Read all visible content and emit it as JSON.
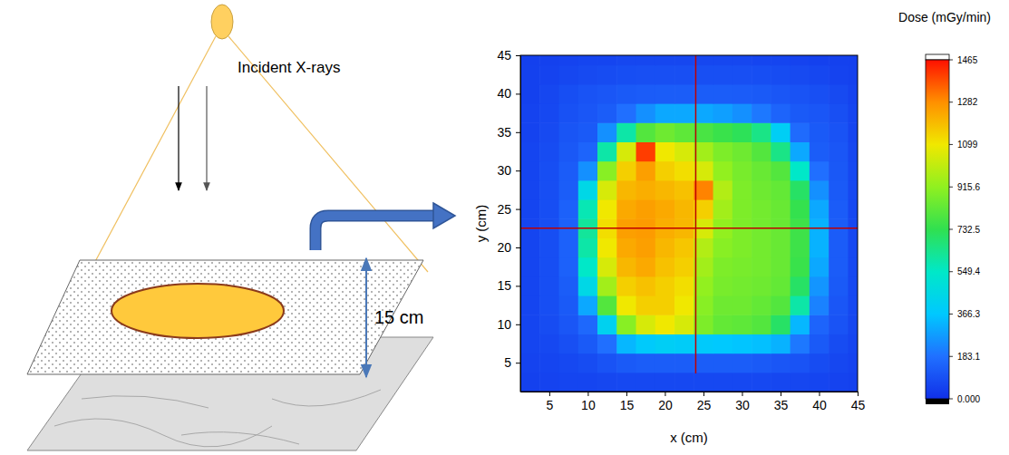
{
  "chart_data": {
    "type": "heatmap",
    "x_label": "x (cm)",
    "y_label": "y (cm)",
    "xlim": [
      1.25,
      45
    ],
    "ylim": [
      1.25,
      45
    ],
    "xticks": [
      5,
      10,
      15,
      20,
      25,
      30,
      35,
      40,
      45
    ],
    "yticks": [
      5,
      10,
      15,
      20,
      25,
      30,
      35,
      40,
      45
    ],
    "x": [
      2.5,
      5,
      7.5,
      10,
      12.5,
      15,
      17.5,
      20,
      22.5,
      25,
      27.5,
      30,
      32.5,
      35,
      37.5,
      40,
      42.5,
      45
    ],
    "y": [
      2.5,
      5,
      7.5,
      10,
      12.5,
      15,
      17.5,
      20,
      22.5,
      25,
      27.5,
      30,
      32.5,
      35,
      37.5,
      40,
      42.5,
      45
    ],
    "z": [
      [
        50,
        55,
        60,
        60,
        65,
        70,
        70,
        70,
        70,
        70,
        70,
        70,
        70,
        65,
        65,
        60,
        55,
        50
      ],
      [
        55,
        60,
        70,
        80,
        100,
        120,
        130,
        130,
        130,
        130,
        130,
        130,
        120,
        110,
        100,
        80,
        65,
        55
      ],
      [
        60,
        70,
        90,
        120,
        180,
        330,
        380,
        400,
        390,
        380,
        370,
        360,
        350,
        320,
        200,
        120,
        80,
        60
      ],
      [
        60,
        80,
        110,
        160,
        420,
        900,
        1050,
        1100,
        1050,
        880,
        830,
        820,
        800,
        700,
        330,
        150,
        100,
        65
      ],
      [
        60,
        85,
        120,
        300,
        800,
        1100,
        1150,
        1150,
        1100,
        900,
        850,
        850,
        830,
        800,
        600,
        220,
        110,
        70
      ],
      [
        60,
        85,
        130,
        450,
        950,
        1150,
        1180,
        1150,
        1120,
        920,
        870,
        860,
        850,
        830,
        700,
        260,
        120,
        70
      ],
      [
        60,
        85,
        140,
        550,
        1050,
        1200,
        1230,
        1180,
        1150,
        950,
        880,
        870,
        860,
        840,
        750,
        300,
        125,
        70
      ],
      [
        60,
        85,
        140,
        600,
        1100,
        1230,
        1250,
        1200,
        1170,
        980,
        900,
        880,
        860,
        840,
        760,
        320,
        125,
        70
      ],
      [
        60,
        85,
        140,
        620,
        1120,
        1250,
        1260,
        1220,
        1200,
        1050,
        920,
        880,
        860,
        840,
        760,
        320,
        125,
        70
      ],
      [
        60,
        85,
        140,
        580,
        1100,
        1230,
        1250,
        1230,
        1200,
        1150,
        950,
        880,
        860,
        840,
        740,
        300,
        125,
        70
      ],
      [
        60,
        85,
        130,
        450,
        1050,
        1200,
        1220,
        1200,
        1180,
        1300,
        980,
        880,
        850,
        830,
        700,
        250,
        120,
        70
      ],
      [
        60,
        85,
        125,
        250,
        900,
        1150,
        1250,
        1150,
        1120,
        1050,
        920,
        870,
        840,
        800,
        550,
        180,
        115,
        70
      ],
      [
        60,
        80,
        115,
        150,
        600,
        1050,
        1400,
        1100,
        1050,
        950,
        880,
        850,
        800,
        650,
        300,
        130,
        110,
        65
      ],
      [
        55,
        75,
        105,
        120,
        250,
        600,
        800,
        850,
        820,
        780,
        750,
        720,
        650,
        400,
        170,
        120,
        100,
        60
      ],
      [
        55,
        70,
        95,
        110,
        130,
        180,
        250,
        300,
        300,
        300,
        280,
        250,
        200,
        150,
        120,
        110,
        90,
        60
      ],
      [
        50,
        65,
        85,
        100,
        110,
        120,
        125,
        130,
        130,
        130,
        130,
        125,
        120,
        110,
        100,
        90,
        75,
        55
      ],
      [
        50,
        55,
        65,
        75,
        80,
        85,
        90,
        90,
        90,
        90,
        90,
        90,
        85,
        80,
        75,
        65,
        55,
        50
      ],
      [
        45,
        50,
        55,
        60,
        60,
        65,
        65,
        65,
        65,
        65,
        65,
        65,
        60,
        60,
        55,
        50,
        50,
        45
      ]
    ],
    "crosshair_x": 24,
    "crosshair_y": 22.5,
    "colorbar": {
      "title": "Dose (mGy/min)",
      "range": [
        0,
        1465
      ],
      "ticks": [
        {
          "value": 0,
          "label": "0.000"
        },
        183.1,
        366.3,
        549.4,
        732.5,
        915.6,
        1099,
        1282,
        1465
      ]
    }
  },
  "diagram": {
    "beam_label": "Incident X-rays",
    "gap_label": "15 cm"
  }
}
